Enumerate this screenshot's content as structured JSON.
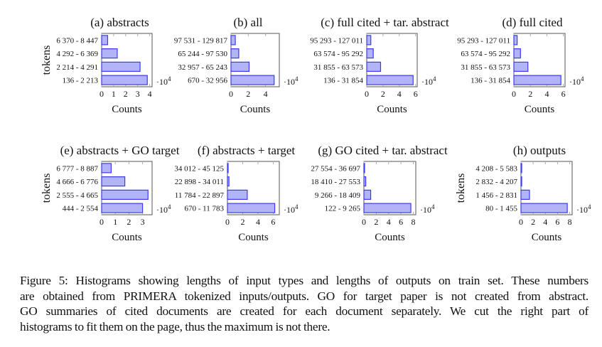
{
  "chart_data": [
    {
      "type": "bar",
      "orientation": "horizontal",
      "title": "(a) abstracts",
      "ylabel": "tokens",
      "xlabel": "Counts",
      "multiplier": "·10",
      "multiplier_exp": "4",
      "categories": [
        "136 - 2 213",
        "2 214 - 4 291",
        "4 292 - 6 369",
        "6 370 - 8 447"
      ],
      "values": [
        3.8,
        3.2,
        1.3,
        0.5
      ],
      "xlim": [
        0,
        4.2
      ],
      "xticks": [
        0,
        1,
        2,
        3,
        4
      ]
    },
    {
      "type": "bar",
      "orientation": "horizontal",
      "title": "(b) all",
      "ylabel": "",
      "xlabel": "Counts",
      "multiplier": "·10",
      "multiplier_exp": "4",
      "categories": [
        "670 - 32 956",
        "32 957 - 65 243",
        "65 244 - 97 530",
        "97 531 - 129 817"
      ],
      "values": [
        5.0,
        2.1,
        0.9,
        0.5
      ],
      "xlim": [
        0,
        5.6
      ],
      "xticks": [
        0,
        2,
        4
      ]
    },
    {
      "type": "bar",
      "orientation": "horizontal",
      "title": "(c) full cited + tar. abstract",
      "ylabel": "",
      "xlabel": "Counts",
      "multiplier": "·10",
      "multiplier_exp": "4",
      "categories": [
        "136 - 31 854",
        "31 855 - 63 573",
        "63 574 - 95 292",
        "95 293 - 127 011"
      ],
      "values": [
        5.7,
        1.7,
        0.8,
        0.5
      ],
      "xlim": [
        0,
        6.2
      ],
      "xticks": [
        0,
        2,
        4,
        6
      ]
    },
    {
      "type": "bar",
      "orientation": "horizontal",
      "title": "(d) full cited",
      "ylabel": "",
      "xlabel": "Counts",
      "multiplier": "·10",
      "multiplier_exp": "4",
      "categories": [
        "136 - 31 854",
        "31 855 - 63 573",
        "63 574 - 95 292",
        "95 293 - 127 011"
      ],
      "values": [
        5.7,
        1.7,
        0.8,
        0.4
      ],
      "xlim": [
        0,
        6.2
      ],
      "xticks": [
        0,
        2,
        4,
        6
      ]
    },
    {
      "type": "bar",
      "orientation": "horizontal",
      "title": "(e) abstracts + GO target",
      "ylabel": "tokens",
      "xlabel": "Counts",
      "multiplier": "·10",
      "multiplier_exp": "4",
      "categories": [
        "444 - 2 554",
        "2 555 - 4 665",
        "4 666 - 6 776",
        "6 777 - 8 887"
      ],
      "values": [
        3.0,
        3.4,
        1.7,
        0.7
      ],
      "xlim": [
        0,
        3.7
      ],
      "xticks": [
        0,
        1,
        2,
        3
      ]
    },
    {
      "type": "bar",
      "orientation": "horizontal",
      "title": "(f) abstracts + target",
      "ylabel": "",
      "xlabel": "Counts",
      "multiplier": "·10",
      "multiplier_exp": "4",
      "categories": [
        "670 - 11 783",
        "11 784 - 22 897",
        "22 898 - 34 011",
        "34 012 - 45 125"
      ],
      "values": [
        6.2,
        2.6,
        0.2,
        0.05
      ],
      "xlim": [
        0,
        6.8
      ],
      "xticks": [
        0,
        2,
        4,
        6
      ]
    },
    {
      "type": "bar",
      "orientation": "horizontal",
      "title": "(g) GO cited + tar. abstract",
      "ylabel": "",
      "xlabel": "Counts",
      "multiplier": "·10",
      "multiplier_exp": "4",
      "categories": [
        "122 - 9 265",
        "9 266 - 18 409",
        "18 410 - 27 553",
        "27 554 - 36 697"
      ],
      "values": [
        7.6,
        1.1,
        0.3,
        0.05
      ],
      "xlim": [
        0,
        8.4
      ],
      "xticks": [
        0,
        2,
        4,
        6,
        8
      ]
    },
    {
      "type": "bar",
      "orientation": "horizontal",
      "title": "(h) outputs",
      "ylabel": "tokens",
      "xlabel": "Counts",
      "multiplier": "·10",
      "multiplier_exp": "4",
      "categories": [
        "80 - 1 455",
        "1 456 - 2 831",
        "2 832 - 4 207",
        "4 208 - 5 583"
      ],
      "values": [
        7.6,
        1.4,
        0.1,
        0.03
      ],
      "xlim": [
        0,
        8.4
      ],
      "xticks": [
        0,
        2,
        4,
        6,
        8
      ]
    }
  ],
  "colors": {
    "bar_fill": "#b3b3f7",
    "bar_stroke": "#3b3bf0",
    "axis": "#555555"
  },
  "caption": {
    "lines": [
      "Figure 5: Histograms showing lengths of input types and lengths of outputs on train set. These numbers",
      "are obtained from PRIMERA tokenized inputs/outputs. GO for target paper is not created from abstract.",
      "GO summaries of cited documents are created for each document separately.  We cut the right part of",
      "histograms to fit them on the page, thus the maximum is not there."
    ]
  }
}
